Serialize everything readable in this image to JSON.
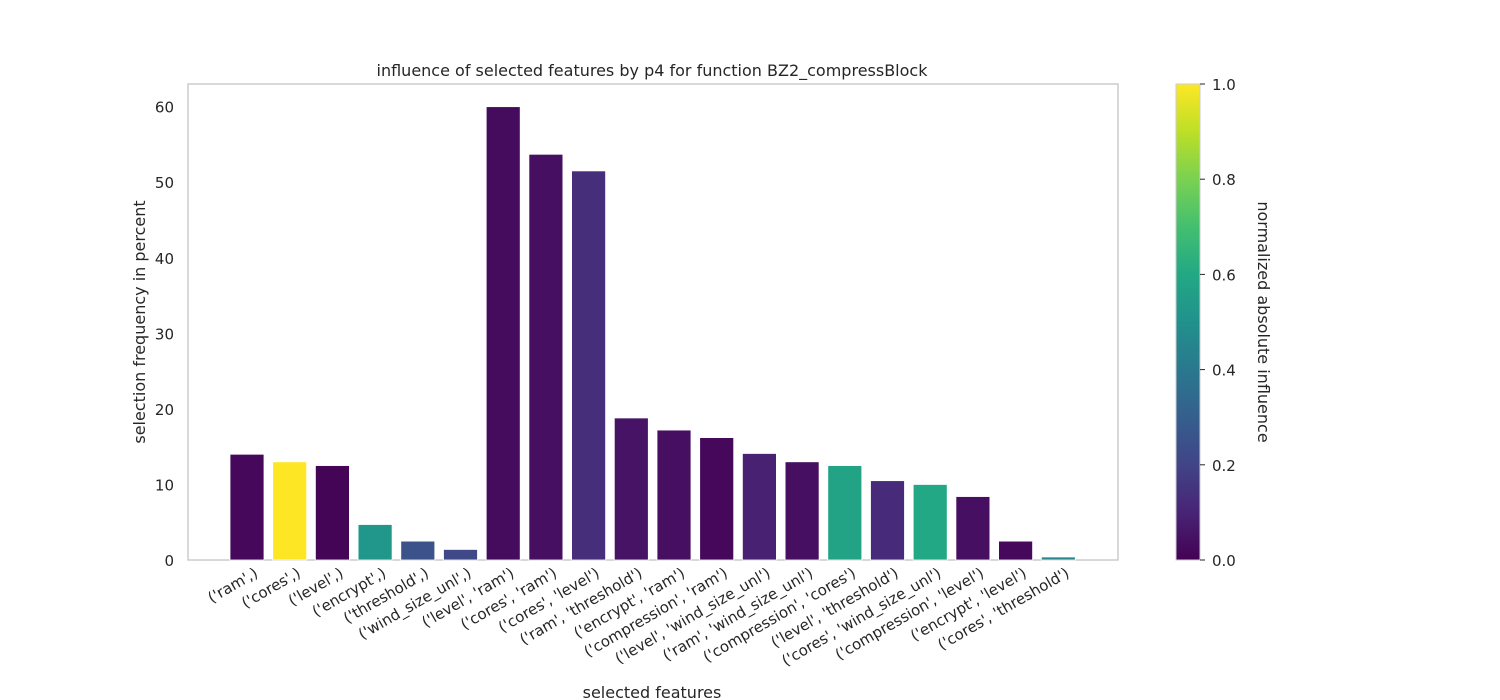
{
  "chart_data": {
    "type": "bar",
    "title": "influence of selected features by p4 for function BZ2_compressBlock",
    "xlabel": "selected features",
    "ylabel": "selection frequency in percent",
    "ylim": [
      0,
      63
    ],
    "yticks": [
      0,
      10,
      20,
      30,
      40,
      50,
      60
    ],
    "grid": false,
    "categories": [
      "('ram',)",
      "('cores',)",
      "('level',)",
      "('encrypt',)",
      "('threshold',)",
      "('wind_size_unl',)",
      "('level', 'ram')",
      "('cores', 'ram')",
      "('cores', 'level')",
      "('ram', 'threshold')",
      "('encrypt', 'ram')",
      "('compression', 'ram')",
      "('level', 'wind_size_unl')",
      "('ram', 'wind_size_unl')",
      "('compression', 'cores')",
      "('level', 'threshold')",
      "('cores', 'wind_size_unl')",
      "('compression', 'level')",
      "('encrypt', 'level')",
      "('cores', 'threshold')"
    ],
    "values": [
      14.0,
      13.0,
      12.5,
      4.7,
      2.5,
      1.4,
      60.0,
      53.7,
      51.5,
      18.8,
      17.2,
      16.2,
      14.1,
      13.0,
      12.5,
      10.5,
      10.0,
      8.4,
      2.5,
      0.4
    ],
    "color_values": [
      0.02,
      1.0,
      0.01,
      0.52,
      0.25,
      0.22,
      0.03,
      0.04,
      0.13,
      0.05,
      0.04,
      0.02,
      0.09,
      0.04,
      0.58,
      0.12,
      0.6,
      0.04,
      0.02,
      0.45
    ],
    "colorbar": {
      "label": "normalized absolute influence",
      "range": [
        0.0,
        1.0
      ],
      "ticks": [
        "0.0",
        "0.2",
        "0.4",
        "0.6",
        "0.8",
        "1.0"
      ],
      "colormap": "viridis"
    }
  }
}
